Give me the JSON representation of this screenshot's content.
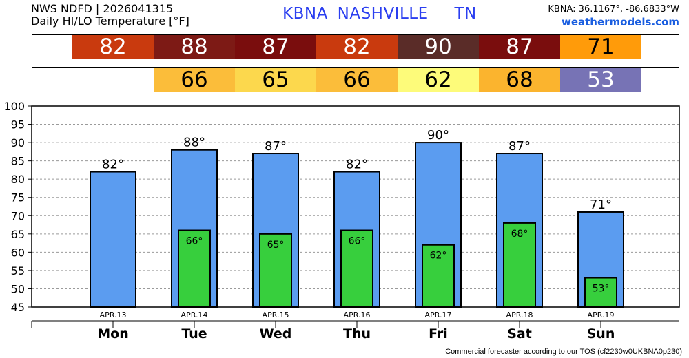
{
  "header": {
    "source": "NWS NDFD | 2026041315",
    "subtitle": "Daily HI/LO Temperature [°F]",
    "station_id": "KBNA",
    "station_name": "NASHVILLE",
    "state": "TN",
    "coords": "KBNA: 36.1167°, -86.6833°W",
    "site": "weathermodels.com"
  },
  "footer": {
    "tos": "Commercial forecaster according to our TOS (cf2230w0UKBNA0p230)"
  },
  "strips": {
    "hi": [
      {
        "value": "82",
        "bg": "#c93a0e",
        "fg": "#ffffff"
      },
      {
        "value": "88",
        "bg": "#7d1a15",
        "fg": "#ffffff"
      },
      {
        "value": "87",
        "bg": "#7a0d0d",
        "fg": "#ffffff"
      },
      {
        "value": "82",
        "bg": "#c93a0e",
        "fg": "#ffffff"
      },
      {
        "value": "90",
        "bg": "#5a2c28",
        "fg": "#ffffff"
      },
      {
        "value": "87",
        "bg": "#7a0d0d",
        "fg": "#ffffff"
      },
      {
        "value": "71",
        "bg": "#ff9b0a",
        "fg": "#000000"
      }
    ],
    "lo": [
      {
        "value": "",
        "bg": "#ffffff",
        "fg": "#000000"
      },
      {
        "value": "66",
        "bg": "#fbbd3a",
        "fg": "#000000"
      },
      {
        "value": "65",
        "bg": "#fcd84d",
        "fg": "#000000"
      },
      {
        "value": "66",
        "bg": "#fbbd3a",
        "fg": "#000000"
      },
      {
        "value": "62",
        "bg": "#fdfb7a",
        "fg": "#000000"
      },
      {
        "value": "68",
        "bg": "#fbb42e",
        "fg": "#000000"
      },
      {
        "value": "53",
        "bg": "#7773b5",
        "fg": "#ffffff"
      }
    ]
  },
  "chart_data": {
    "type": "bar",
    "categories": [
      "APR.13",
      "APR.14",
      "APR.15",
      "APR.16",
      "APR.17",
      "APR.18",
      "APR.19"
    ],
    "days": [
      "Mon",
      "Tue",
      "Wed",
      "Thu",
      "Fri",
      "Sat",
      "Sun"
    ],
    "series": [
      {
        "values": [
          82,
          88,
          87,
          82,
          90,
          87,
          71
        ],
        "color": "#5b9cf0",
        "labels": [
          "82°",
          "88°",
          "87°",
          "82°",
          "90°",
          "87°",
          "71°"
        ]
      },
      {
        "values": [
          null,
          66,
          65,
          66,
          62,
          68,
          53
        ],
        "color": "#37cf3d",
        "labels": [
          "",
          "66°",
          "65°",
          "66°",
          "62°",
          "68°",
          "53°"
        ]
      }
    ],
    "ylim": [
      45,
      100
    ],
    "yticks": [
      "100",
      "95",
      "90",
      "85",
      "80",
      "75",
      "70",
      "65",
      "60",
      "55",
      "50",
      "45"
    ],
    "grid": true
  }
}
